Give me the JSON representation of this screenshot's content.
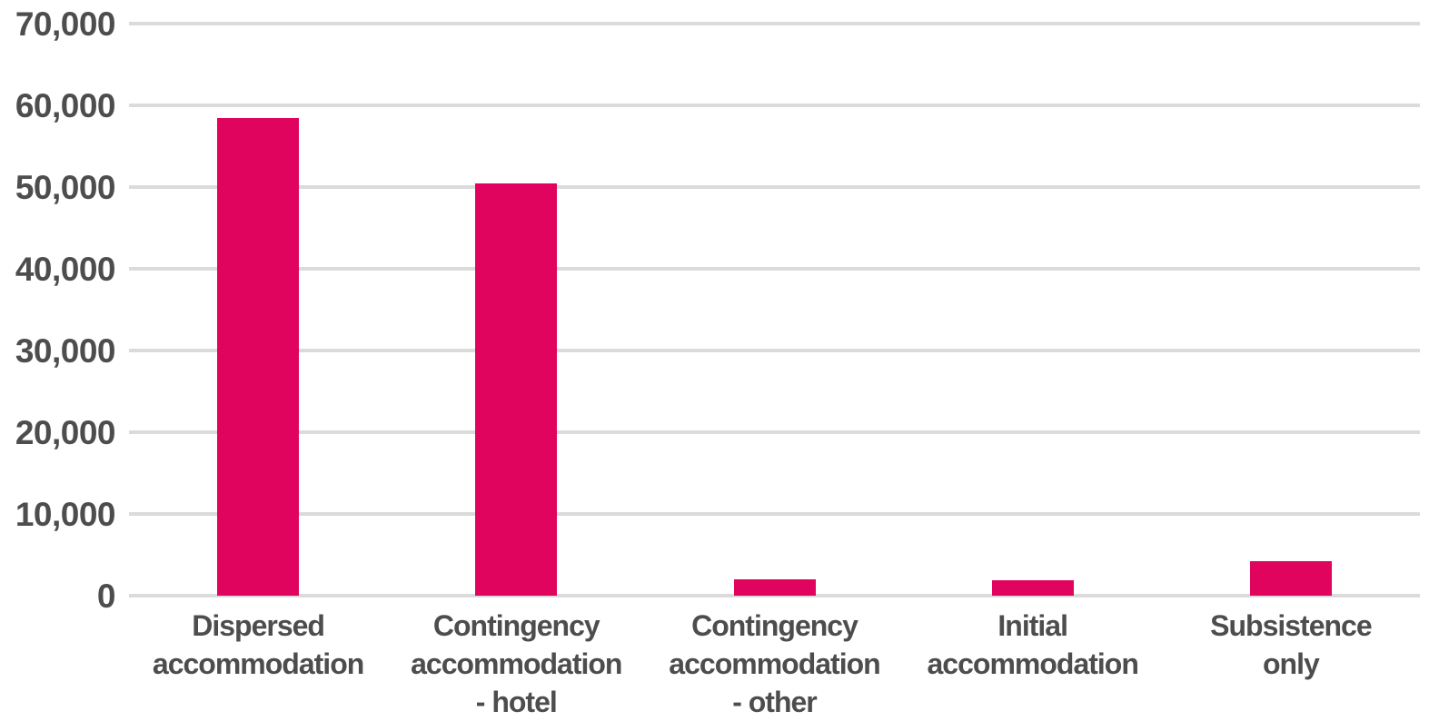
{
  "chart_data": {
    "type": "bar",
    "title": "",
    "categories": [
      "Dispersed accommodation",
      "Contingency accommodation - hotel",
      "Contingency accommodation - other",
      "Initial accommodation",
      "Subsistence only"
    ],
    "category_lines": [
      [
        "Dispersed",
        "accommodation"
      ],
      [
        "Contingency",
        "accommodation",
        "- hotel"
      ],
      [
        "Contingency",
        "accommodation",
        "- other"
      ],
      [
        "Initial",
        "accommodation"
      ],
      [
        "Subsistence",
        "only"
      ]
    ],
    "values": [
      58500,
      50500,
      2000,
      1900,
      4200
    ],
    "xlabel": "",
    "ylabel": "",
    "ylim": [
      0,
      70000
    ],
    "yticks": [
      {
        "value": 0,
        "label": "0"
      },
      {
        "value": 10000,
        "label": "10,000"
      },
      {
        "value": 20000,
        "label": "20,000"
      },
      {
        "value": 30000,
        "label": "30,000"
      },
      {
        "value": 40000,
        "label": "40,000"
      },
      {
        "value": 50000,
        "label": "50,000"
      },
      {
        "value": 60000,
        "label": "60,000"
      },
      {
        "value": 70000,
        "label": "70,000"
      }
    ],
    "grid": true,
    "legend": false,
    "colors": {
      "bar": "#E0045E",
      "gridline": "#DBDBDB",
      "text": "#4D4D4D",
      "background": "#FFFFFF"
    }
  }
}
